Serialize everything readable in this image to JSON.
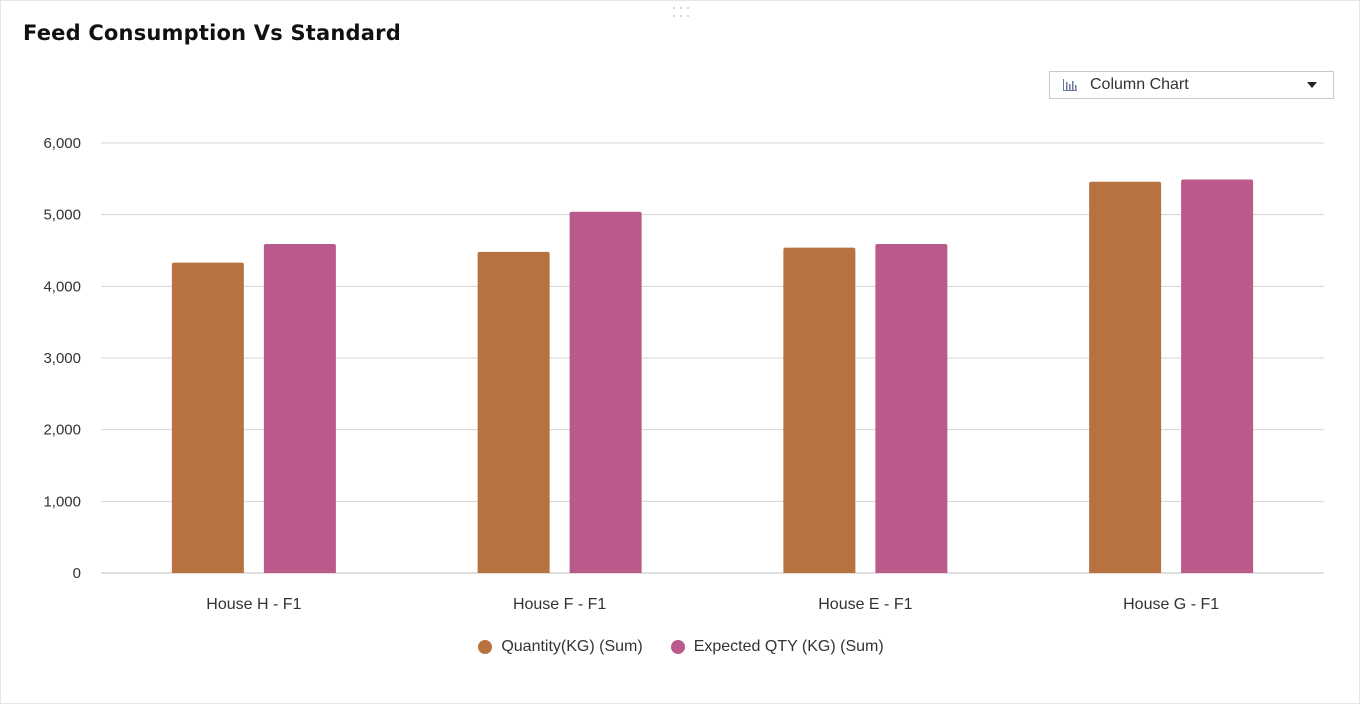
{
  "panel": {
    "title": "Feed Consumption Vs Standard",
    "chart_type_selector": {
      "selected": "Column Chart",
      "icon": "column-chart-icon"
    }
  },
  "colors": {
    "quantity": "#b87240",
    "expected": "#b95a8a",
    "grid": "#d4d4d4",
    "axis_text": "#333333"
  },
  "chart_data": {
    "type": "bar",
    "title": "",
    "xlabel": "",
    "ylabel": "",
    "categories": [
      "House H - F1",
      "House F - F1",
      "House E - F1",
      "House G - F1"
    ],
    "series": [
      {
        "name": "Quantity(KG) (Sum)",
        "values": [
          4330,
          4480,
          4540,
          5460
        ]
      },
      {
        "name": "Expected QTY (KG) (Sum)",
        "values": [
          4590,
          5040,
          4590,
          5490
        ]
      }
    ],
    "ylim": [
      0,
      6000
    ],
    "yticks": [
      0,
      1000,
      2000,
      3000,
      4000,
      5000,
      6000
    ],
    "ytick_labels": [
      "0",
      "1,000",
      "2,000",
      "3,000",
      "4,000",
      "5,000",
      "6,000"
    ],
    "grid": true,
    "legend": "bottom"
  }
}
